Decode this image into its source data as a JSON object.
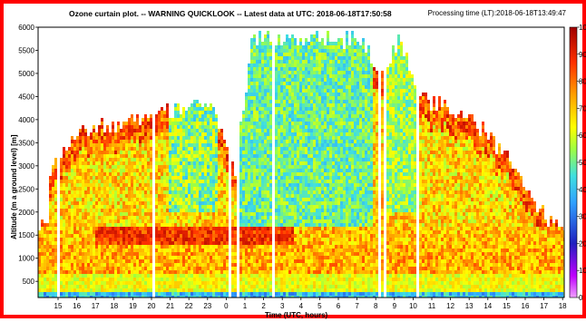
{
  "header": {
    "title": "Ozone curtain plot. -- WARNING QUICKLOOK -- Latest data at UTC: 2018-06-18T17:50:58",
    "processing": "Processing time (LT):2018-06-18T13:49:47"
  },
  "chart_data": {
    "type": "heatmap",
    "title": "Ozone curtain plot. -- WARNING QUICKLOOK -- Latest data at UTC: 2018-06-18T17:50:58",
    "xlabel": "Time (UTC, hours)",
    "ylabel": "Altitude (m a ground level) [m]",
    "x_ticks": [
      "15",
      "16",
      "17",
      "18",
      "19",
      "20",
      "21",
      "22",
      "23",
      "0",
      "1",
      "2",
      "3",
      "4",
      "5",
      "6",
      "7",
      "8",
      "9",
      "10",
      "11",
      "12",
      "13",
      "14",
      "15",
      "16",
      "17",
      "18"
    ],
    "y_ticks": [
      500,
      1000,
      1500,
      2000,
      2500,
      3000,
      3500,
      4000,
      4500,
      5000,
      5500,
      6000
    ],
    "ylim": [
      150,
      6000
    ],
    "colorbar": {
      "ticks": [
        0,
        10,
        20,
        30,
        40,
        50,
        60,
        70,
        80,
        90,
        100
      ],
      "range": [
        0,
        100
      ]
    },
    "cloud_top_profile_m": [
      {
        "x": "14.5",
        "top": 3100
      },
      {
        "x": "15",
        "top": 3700
      },
      {
        "x": "16",
        "top": 4000
      },
      {
        "x": "17",
        "top": 4100
      },
      {
        "x": "18",
        "top": 4200
      },
      {
        "x": "19",
        "top": 4200
      },
      {
        "x": "20",
        "top": 4300
      },
      {
        "x": "21",
        "top": 4500
      },
      {
        "x": "22",
        "top": 4700
      },
      {
        "x": "23",
        "top": 4300
      },
      {
        "x": "0",
        "top": 3000
      },
      {
        "x": "1",
        "top": 6000
      },
      {
        "x": "2",
        "top": 6000
      },
      {
        "x": "3",
        "top": 6000
      },
      {
        "x": "4",
        "top": 6000
      },
      {
        "x": "5",
        "top": 6000
      },
      {
        "x": "6",
        "top": 6000
      },
      {
        "x": "7",
        "top": 6000
      },
      {
        "x": "8",
        "top": 5200
      },
      {
        "x": "9",
        "top": 6000
      },
      {
        "x": "10",
        "top": 4700
      },
      {
        "x": "11",
        "top": 4600
      },
      {
        "x": "12",
        "top": 4400
      },
      {
        "x": "13",
        "top": 4200
      },
      {
        "x": "14",
        "top": 3800
      },
      {
        "x": "15",
        "top": 3400
      },
      {
        "x": "16",
        "top": 2700
      },
      {
        "x": "17",
        "top": 2100
      },
      {
        "x": "18",
        "top": 1900
      }
    ]
  }
}
